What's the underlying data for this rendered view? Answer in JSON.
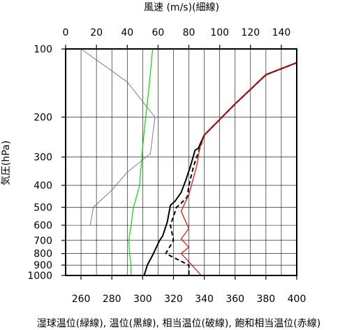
{
  "chart_data": {
    "type": "line",
    "top_axis_title": "風速 (m/s)(細線)",
    "left_axis_title": "気圧(hPa)",
    "bottom_axis_title": "湿球温位(緑線), 温位(黒線), 相当温位(破線), 飽和相当温位(赤線)",
    "wind_axis": {
      "ticks": [
        0,
        20,
        40,
        60,
        80,
        100,
        120,
        140
      ],
      "tick_labels": [
        "0",
        "20",
        "40",
        "60",
        "80",
        "100",
        "120",
        "140"
      ],
      "range": [
        0,
        150
      ]
    },
    "temp_axis": {
      "ticks": [
        260,
        280,
        300,
        320,
        340,
        360,
        380,
        400
      ],
      "tick_labels": [
        "260",
        "280",
        "300",
        "320",
        "340",
        "360",
        "380",
        "400"
      ],
      "range": [
        250,
        400
      ]
    },
    "pressure_axis": {
      "scale": "log",
      "ticks": [
        100,
        200,
        300,
        400,
        500,
        600,
        700,
        800,
        900,
        1000
      ],
      "tick_labels": [
        "100",
        "200",
        "300",
        "400",
        "500",
        "600",
        "700",
        "800",
        "900",
        "1000"
      ],
      "range": [
        100,
        1000
      ]
    },
    "grid": true,
    "series": [
      {
        "key": "wind",
        "color": "#707070",
        "axis": "wind",
        "style": "thin",
        "points": [
          [
            10,
            100
          ],
          [
            40,
            140
          ],
          [
            58,
            200
          ],
          [
            55,
            290
          ],
          [
            40,
            350
          ],
          [
            30,
            420
          ],
          [
            18,
            500
          ],
          [
            16,
            600
          ]
        ]
      },
      {
        "key": "wet_bulb_potential_temperature",
        "color": "#00dd00",
        "axis": "temp",
        "style": "solid",
        "points": [
          [
            306.5,
            100
          ],
          [
            304,
            150
          ],
          [
            302,
            200
          ],
          [
            300,
            270
          ],
          [
            299.5,
            300
          ],
          [
            298,
            400
          ],
          [
            296,
            450
          ],
          [
            294,
            500
          ],
          [
            292.5,
            600
          ],
          [
            291,
            700
          ],
          [
            291.5,
            800
          ],
          [
            292.5,
            900
          ],
          [
            292.5,
            1000
          ]
        ]
      },
      {
        "key": "potential_temperature",
        "color": "#000000",
        "axis": "temp",
        "style": "solid",
        "points": [
          [
            400,
            115
          ],
          [
            380,
            130
          ],
          [
            360,
            175
          ],
          [
            340,
            240
          ],
          [
            336,
            275
          ],
          [
            334,
            280
          ],
          [
            331,
            330
          ],
          [
            328,
            380
          ],
          [
            325,
            430
          ],
          [
            321,
            470
          ],
          [
            318,
            490
          ],
          [
            316,
            580
          ],
          [
            313,
            670
          ],
          [
            311,
            700
          ],
          [
            307,
            800
          ],
          [
            303,
            900
          ],
          [
            301,
            1000
          ]
        ]
      },
      {
        "key": "equivalent_potential_temperature",
        "color": "#000000",
        "axis": "temp",
        "style": "dashed",
        "points": [
          [
            400,
            115
          ],
          [
            380,
            130
          ],
          [
            360,
            175
          ],
          [
            340,
            240
          ],
          [
            337,
            275
          ],
          [
            333,
            330
          ],
          [
            330,
            400
          ],
          [
            329,
            450
          ],
          [
            325,
            480
          ],
          [
            322,
            500
          ],
          [
            318,
            600
          ],
          [
            320,
            700
          ],
          [
            315,
            800
          ],
          [
            330,
            900
          ],
          [
            330,
            1000
          ]
        ]
      },
      {
        "key": "saturated_equivalent_potential_temperature",
        "color": "#ff0000",
        "axis": "temp",
        "style": "solid",
        "points": [
          [
            400,
            115
          ],
          [
            380,
            130
          ],
          [
            360,
            175
          ],
          [
            340,
            240
          ],
          [
            337,
            275
          ],
          [
            335,
            330
          ],
          [
            330,
            440
          ],
          [
            328,
            470
          ],
          [
            325,
            520
          ],
          [
            327,
            560
          ],
          [
            330,
            620
          ],
          [
            325,
            690
          ],
          [
            330,
            750
          ],
          [
            325,
            800
          ],
          [
            332,
            900
          ],
          [
            338,
            1000
          ]
        ]
      }
    ]
  }
}
